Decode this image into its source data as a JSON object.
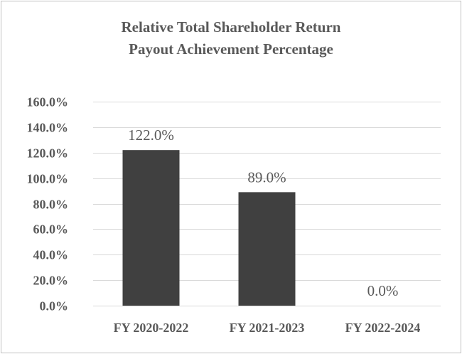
{
  "chart_data": {
    "type": "bar",
    "title": [
      "Relative Total Shareholder Return",
      "Payout Achievement Percentage"
    ],
    "categories": [
      "FY 2020-2022",
      "FY 2021-2023",
      "FY 2022-2024"
    ],
    "values": [
      122.0,
      89.0,
      0.0
    ],
    "data_labels": [
      "122.0%",
      "89.0%",
      "0.0%"
    ],
    "ylim": [
      0,
      160
    ],
    "yticks": [
      0,
      20,
      40,
      60,
      80,
      100,
      120,
      140,
      160
    ],
    "ytick_labels": [
      "0.0%",
      "20.0%",
      "40.0%",
      "60.0%",
      "80.0%",
      "100.0%",
      "120.0%",
      "140.0%",
      "160.0%"
    ],
    "grid": true,
    "legend": "none",
    "colors": {
      "bar": "#404040",
      "grid": "#d9d9d9",
      "text": "#595959",
      "border": "#bfbfbf"
    }
  }
}
